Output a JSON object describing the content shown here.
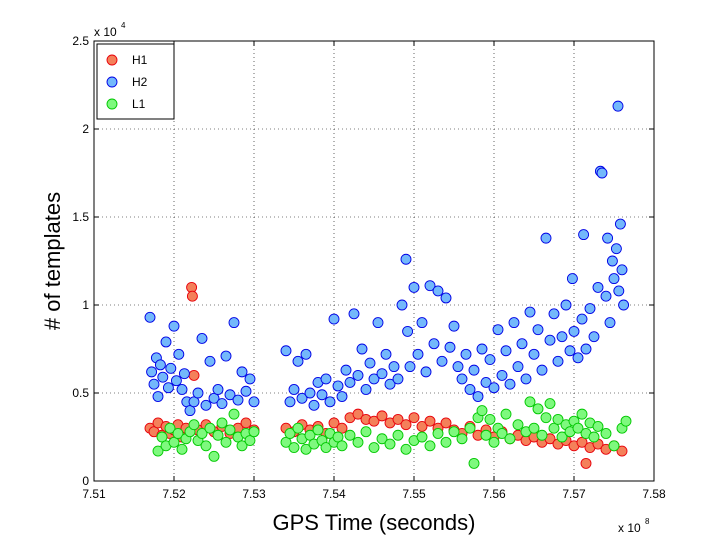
{
  "chart_data": {
    "type": "scatter",
    "title": "",
    "xlabel": "GPS Time (seconds)",
    "ylabel": "# of templates",
    "x_multiplier_label": "x 10",
    "x_multiplier_exp": "8",
    "y_multiplier_label": "x 10",
    "y_multiplier_exp": "4",
    "xlim": [
      7.51,
      7.58
    ],
    "ylim": [
      0,
      2.5
    ],
    "xticks": [
      "7.51",
      "7.52",
      "7.53",
      "7.54",
      "7.55",
      "7.56",
      "7.57",
      "7.58"
    ],
    "yticks": [
      "0",
      "0.5",
      "1",
      "1.5",
      "2",
      "2.5"
    ],
    "grid": true,
    "legend_position": "top-left",
    "series": [
      {
        "name": "H1",
        "fill": "#f4805a",
        "stroke": "#e8000b",
        "points": [
          [
            7.517,
            0.3
          ],
          [
            7.5175,
            0.28
          ],
          [
            7.518,
            0.33
          ],
          [
            7.5185,
            0.26
          ],
          [
            7.519,
            0.31
          ],
          [
            7.5195,
            0.27
          ],
          [
            7.52,
            0.29
          ],
          [
            7.5205,
            0.32
          ],
          [
            7.521,
            0.25
          ],
          [
            7.5215,
            0.3
          ],
          [
            7.5222,
            1.1
          ],
          [
            7.5223,
            1.05
          ],
          [
            7.5225,
            0.6
          ],
          [
            7.523,
            0.29
          ],
          [
            7.524,
            0.32
          ],
          [
            7.525,
            0.28
          ],
          [
            7.526,
            0.31
          ],
          [
            7.527,
            0.27
          ],
          [
            7.528,
            0.3
          ],
          [
            7.529,
            0.33
          ],
          [
            7.53,
            0.29
          ],
          [
            7.534,
            0.3
          ],
          [
            7.535,
            0.28
          ],
          [
            7.536,
            0.32
          ],
          [
            7.537,
            0.29
          ],
          [
            7.538,
            0.31
          ],
          [
            7.539,
            0.27
          ],
          [
            7.54,
            0.33
          ],
          [
            7.541,
            0.3
          ],
          [
            7.542,
            0.36
          ],
          [
            7.543,
            0.38
          ],
          [
            7.544,
            0.35
          ],
          [
            7.545,
            0.34
          ],
          [
            7.546,
            0.37
          ],
          [
            7.547,
            0.33
          ],
          [
            7.548,
            0.35
          ],
          [
            7.549,
            0.32
          ],
          [
            7.55,
            0.36
          ],
          [
            7.551,
            0.31
          ],
          [
            7.552,
            0.34
          ],
          [
            7.553,
            0.3
          ],
          [
            7.554,
            0.33
          ],
          [
            7.555,
            0.29
          ],
          [
            7.556,
            0.27
          ],
          [
            7.557,
            0.31
          ],
          [
            7.558,
            0.26
          ],
          [
            7.559,
            0.29
          ],
          [
            7.56,
            0.25
          ],
          [
            7.561,
            0.28
          ],
          [
            7.562,
            0.24
          ],
          [
            7.563,
            0.26
          ],
          [
            7.564,
            0.23
          ],
          [
            7.565,
            0.25
          ],
          [
            7.566,
            0.22
          ],
          [
            7.567,
            0.24
          ],
          [
            7.568,
            0.21
          ],
          [
            7.569,
            0.23
          ],
          [
            7.57,
            0.2
          ],
          [
            7.571,
            0.22
          ],
          [
            7.5715,
            0.1
          ],
          [
            7.572,
            0.19
          ],
          [
            7.573,
            0.21
          ],
          [
            7.574,
            0.18
          ],
          [
            7.575,
            0.2
          ],
          [
            7.576,
            0.17
          ]
        ]
      },
      {
        "name": "H2",
        "fill": "#73b8fb",
        "stroke": "#0000e6",
        "points": [
          [
            7.517,
            0.93
          ],
          [
            7.5172,
            0.62
          ],
          [
            7.5175,
            0.55
          ],
          [
            7.5178,
            0.7
          ],
          [
            7.518,
            0.48
          ],
          [
            7.5183,
            0.66
          ],
          [
            7.5186,
            0.59
          ],
          [
            7.519,
            0.79
          ],
          [
            7.5193,
            0.53
          ],
          [
            7.5196,
            0.64
          ],
          [
            7.52,
            0.88
          ],
          [
            7.5203,
            0.57
          ],
          [
            7.5206,
            0.72
          ],
          [
            7.521,
            0.52
          ],
          [
            7.5213,
            0.61
          ],
          [
            7.5216,
            0.45
          ],
          [
            7.522,
            0.4
          ],
          [
            7.5225,
            0.45
          ],
          [
            7.523,
            0.5
          ],
          [
            7.5235,
            0.81
          ],
          [
            7.524,
            0.43
          ],
          [
            7.5245,
            0.68
          ],
          [
            7.525,
            0.47
          ],
          [
            7.5255,
            0.52
          ],
          [
            7.526,
            0.44
          ],
          [
            7.5265,
            0.71
          ],
          [
            7.527,
            0.49
          ],
          [
            7.5275,
            0.9
          ],
          [
            7.528,
            0.46
          ],
          [
            7.5285,
            0.62
          ],
          [
            7.529,
            0.51
          ],
          [
            7.5295,
            0.58
          ],
          [
            7.53,
            0.45
          ],
          [
            7.534,
            0.74
          ],
          [
            7.5345,
            0.45
          ],
          [
            7.535,
            0.52
          ],
          [
            7.5355,
            0.68
          ],
          [
            7.536,
            0.47
          ],
          [
            7.5365,
            0.72
          ],
          [
            7.537,
            0.5
          ],
          [
            7.5375,
            0.43
          ],
          [
            7.538,
            0.56
          ],
          [
            7.5385,
            0.49
          ],
          [
            7.539,
            0.58
          ],
          [
            7.5395,
            0.45
          ],
          [
            7.54,
            0.92
          ],
          [
            7.5405,
            0.54
          ],
          [
            7.541,
            0.48
          ],
          [
            7.5415,
            0.63
          ],
          [
            7.542,
            0.56
          ],
          [
            7.5425,
            0.95
          ],
          [
            7.543,
            0.6
          ],
          [
            7.5435,
            0.75
          ],
          [
            7.544,
            0.52
          ],
          [
            7.5445,
            0.67
          ],
          [
            7.545,
            0.58
          ],
          [
            7.5455,
            0.9
          ],
          [
            7.546,
            0.61
          ],
          [
            7.5465,
            0.72
          ],
          [
            7.547,
            0.55
          ],
          [
            7.5475,
            0.65
          ],
          [
            7.548,
            0.58
          ],
          [
            7.5485,
            1.0
          ],
          [
            7.549,
            1.26
          ],
          [
            7.5492,
            0.85
          ],
          [
            7.5495,
            0.65
          ],
          [
            7.55,
            1.1
          ],
          [
            7.5505,
            0.72
          ],
          [
            7.551,
            0.9
          ],
          [
            7.5515,
            0.62
          ],
          [
            7.552,
            1.11
          ],
          [
            7.5525,
            0.78
          ],
          [
            7.553,
            1.08
          ],
          [
            7.5535,
            0.68
          ],
          [
            7.554,
            1.04
          ],
          [
            7.5545,
            0.76
          ],
          [
            7.555,
            0.88
          ],
          [
            7.5555,
            0.65
          ],
          [
            7.556,
            0.58
          ],
          [
            7.5565,
            0.72
          ],
          [
            7.557,
            0.52
          ],
          [
            7.5575,
            0.63
          ],
          [
            7.558,
            0.48
          ],
          [
            7.5585,
            0.75
          ],
          [
            7.559,
            0.56
          ],
          [
            7.5595,
            0.69
          ],
          [
            7.56,
            0.53
          ],
          [
            7.5605,
            0.86
          ],
          [
            7.561,
            0.6
          ],
          [
            7.5615,
            0.74
          ],
          [
            7.562,
            0.55
          ],
          [
            7.5625,
            0.9
          ],
          [
            7.563,
            0.65
          ],
          [
            7.5635,
            0.78
          ],
          [
            7.564,
            0.58
          ],
          [
            7.5645,
            0.96
          ],
          [
            7.565,
            0.72
          ],
          [
            7.5655,
            0.86
          ],
          [
            7.566,
            0.63
          ],
          [
            7.5665,
            1.38
          ],
          [
            7.567,
            0.8
          ],
          [
            7.5675,
            0.95
          ],
          [
            7.568,
            0.68
          ],
          [
            7.5685,
            0.82
          ],
          [
            7.569,
            1.0
          ],
          [
            7.5695,
            0.74
          ],
          [
            7.5698,
            1.15
          ],
          [
            7.57,
            0.85
          ],
          [
            7.5705,
            0.7
          ],
          [
            7.571,
            0.92
          ],
          [
            7.5712,
            1.4
          ],
          [
            7.5715,
            0.75
          ],
          [
            7.572,
            0.98
          ],
          [
            7.5725,
            0.82
          ],
          [
            7.573,
            1.1
          ],
          [
            7.5733,
            1.76
          ],
          [
            7.5735,
            1.75
          ],
          [
            7.574,
            1.05
          ],
          [
            7.5742,
            1.38
          ],
          [
            7.5745,
            0.9
          ],
          [
            7.5748,
            1.25
          ],
          [
            7.575,
            1.15
          ],
          [
            7.5753,
            1.32
          ],
          [
            7.5756,
            1.08
          ],
          [
            7.5758,
            1.46
          ],
          [
            7.576,
            1.2
          ],
          [
            7.5762,
            1.0
          ],
          [
            7.5755,
            2.13
          ]
        ]
      },
      {
        "name": "L1",
        "fill": "#7ef97e",
        "stroke": "#00c800",
        "points": [
          [
            7.518,
            0.17
          ],
          [
            7.5185,
            0.25
          ],
          [
            7.519,
            0.2
          ],
          [
            7.5195,
            0.3
          ],
          [
            7.52,
            0.22
          ],
          [
            7.5205,
            0.27
          ],
          [
            7.521,
            0.18
          ],
          [
            7.5215,
            0.24
          ],
          [
            7.522,
            0.28
          ],
          [
            7.5225,
            0.32
          ],
          [
            7.523,
            0.23
          ],
          [
            7.5235,
            0.27
          ],
          [
            7.524,
            0.2
          ],
          [
            7.5245,
            0.3
          ],
          [
            7.525,
            0.14
          ],
          [
            7.5255,
            0.26
          ],
          [
            7.526,
            0.33
          ],
          [
            7.5265,
            0.22
          ],
          [
            7.527,
            0.29
          ],
          [
            7.5275,
            0.38
          ],
          [
            7.528,
            0.25
          ],
          [
            7.5285,
            0.2
          ],
          [
            7.529,
            0.27
          ],
          [
            7.5295,
            0.23
          ],
          [
            7.53,
            0.28
          ],
          [
            7.534,
            0.22
          ],
          [
            7.5345,
            0.27
          ],
          [
            7.535,
            0.19
          ],
          [
            7.5355,
            0.3
          ],
          [
            7.536,
            0.24
          ],
          [
            7.5365,
            0.18
          ],
          [
            7.537,
            0.26
          ],
          [
            7.5375,
            0.21
          ],
          [
            7.538,
            0.29
          ],
          [
            7.5385,
            0.23
          ],
          [
            7.539,
            0.19
          ],
          [
            7.5395,
            0.27
          ],
          [
            7.54,
            0.22
          ],
          [
            7.5405,
            0.25
          ],
          [
            7.541,
            0.2
          ],
          [
            7.542,
            0.26
          ],
          [
            7.543,
            0.22
          ],
          [
            7.544,
            0.28
          ],
          [
            7.545,
            0.19
          ],
          [
            7.546,
            0.24
          ],
          [
            7.547,
            0.21
          ],
          [
            7.548,
            0.26
          ],
          [
            7.549,
            0.18
          ],
          [
            7.55,
            0.23
          ],
          [
            7.551,
            0.25
          ],
          [
            7.552,
            0.2
          ],
          [
            7.553,
            0.27
          ],
          [
            7.554,
            0.22
          ],
          [
            7.555,
            0.28
          ],
          [
            7.556,
            0.24
          ],
          [
            7.557,
            0.3
          ],
          [
            7.5575,
            0.1
          ],
          [
            7.558,
            0.36
          ],
          [
            7.5585,
            0.4
          ],
          [
            7.559,
            0.26
          ],
          [
            7.5595,
            0.35
          ],
          [
            7.56,
            0.22
          ],
          [
            7.5605,
            0.3
          ],
          [
            7.561,
            0.27
          ],
          [
            7.5615,
            0.38
          ],
          [
            7.562,
            0.24
          ],
          [
            7.563,
            0.32
          ],
          [
            7.564,
            0.28
          ],
          [
            7.5645,
            0.45
          ],
          [
            7.565,
            0.3
          ],
          [
            7.5655,
            0.41
          ],
          [
            7.566,
            0.26
          ],
          [
            7.5665,
            0.36
          ],
          [
            7.567,
            0.44
          ],
          [
            7.5675,
            0.3
          ],
          [
            7.568,
            0.35
          ],
          [
            7.5685,
            0.25
          ],
          [
            7.569,
            0.32
          ],
          [
            7.5695,
            0.28
          ],
          [
            7.57,
            0.34
          ],
          [
            7.5705,
            0.3
          ],
          [
            7.571,
            0.38
          ],
          [
            7.5715,
            0.27
          ],
          [
            7.572,
            0.33
          ],
          [
            7.5725,
            0.25
          ],
          [
            7.573,
            0.31
          ],
          [
            7.574,
            0.27
          ],
          [
            7.575,
            0.2
          ],
          [
            7.576,
            0.3
          ],
          [
            7.5765,
            0.34
          ]
        ]
      }
    ]
  }
}
